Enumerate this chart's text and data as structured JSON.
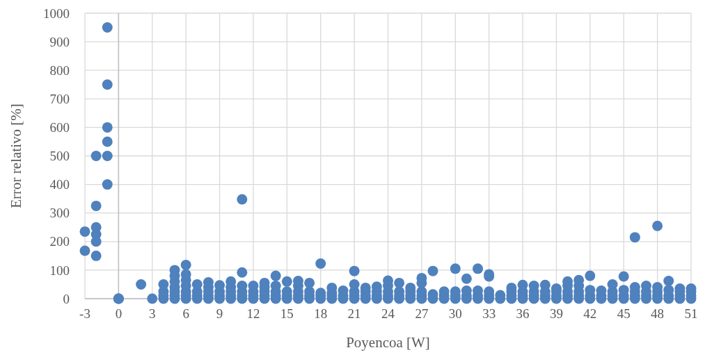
{
  "chart_data": {
    "type": "scatter",
    "xlabel": "Poyencoa [W]",
    "ylabel": "Error relativo [%]",
    "xlim": [
      -3,
      51
    ],
    "xticks": [
      -3,
      0,
      3,
      6,
      9,
      12,
      15,
      18,
      21,
      24,
      27,
      30,
      33,
      36,
      39,
      42,
      45,
      48,
      51
    ],
    "ylim": [
      0,
      1000
    ],
    "yticks": [
      0,
      100,
      200,
      300,
      400,
      500,
      600,
      700,
      800,
      900,
      1000
    ],
    "grid": true,
    "marker": "circle",
    "series": [
      {
        "color": "#4f81bd",
        "x": [
          -3,
          -3,
          -2,
          -2,
          -2,
          -2,
          -2,
          -2,
          -1,
          -1,
          -1,
          -1,
          -1,
          -1,
          0,
          0,
          0,
          2,
          3,
          4,
          4,
          4,
          4,
          5,
          5,
          5,
          5,
          5,
          5,
          5,
          6,
          6,
          6,
          6,
          6,
          6,
          6,
          7,
          7,
          7,
          7,
          8,
          8,
          8,
          8,
          8,
          9,
          9,
          9,
          9,
          10,
          10,
          10,
          10,
          10,
          11,
          11,
          11,
          11,
          11,
          11,
          12,
          12,
          12,
          12,
          13,
          13,
          13,
          13,
          13,
          14,
          14,
          14,
          14,
          14,
          15,
          15,
          15,
          15,
          16,
          16,
          16,
          16,
          16,
          17,
          17,
          17,
          17,
          18,
          18,
          18,
          18,
          19,
          19,
          19,
          19,
          20,
          20,
          20,
          21,
          21,
          21,
          21,
          21,
          22,
          22,
          22,
          22,
          23,
          23,
          23,
          23,
          24,
          24,
          24,
          24,
          24,
          25,
          25,
          25,
          25,
          26,
          26,
          26,
          26,
          27,
          27,
          27,
          27,
          27,
          28,
          28,
          28,
          29,
          29,
          29,
          30,
          30,
          30,
          30,
          31,
          31,
          31,
          31,
          32,
          32,
          32,
          32,
          33,
          33,
          33,
          33,
          33,
          34,
          34,
          35,
          35,
          35,
          35,
          36,
          36,
          36,
          36,
          37,
          37,
          37,
          37,
          38,
          38,
          38,
          38,
          39,
          39,
          39,
          39,
          40,
          40,
          40,
          40,
          40,
          41,
          41,
          41,
          41,
          41,
          42,
          42,
          42,
          42,
          43,
          43,
          43,
          44,
          44,
          44,
          44,
          45,
          45,
          45,
          45,
          46,
          46,
          46,
          46,
          46,
          47,
          47,
          47,
          47,
          48,
          48,
          48,
          48,
          48,
          49,
          49,
          49,
          49,
          50,
          50,
          50,
          50,
          51,
          51,
          51,
          51
        ],
        "values": [
          235,
          168,
          500,
          325,
          250,
          225,
          200,
          150,
          950,
          750,
          600,
          550,
          500,
          400,
          0,
          0,
          0,
          50,
          0,
          0,
          10,
          25,
          50,
          0,
          10,
          25,
          40,
          60,
          80,
          100,
          0,
          10,
          25,
          45,
          65,
          85,
          118,
          0,
          10,
          25,
          50,
          0,
          10,
          25,
          40,
          57,
          0,
          10,
          25,
          47,
          0,
          10,
          25,
          40,
          60,
          0,
          10,
          25,
          45,
          92,
          348,
          0,
          10,
          25,
          45,
          0,
          10,
          25,
          40,
          55,
          0,
          10,
          25,
          45,
          80,
          0,
          10,
          25,
          60,
          0,
          10,
          25,
          45,
          62,
          0,
          10,
          25,
          55,
          0,
          10,
          20,
          123,
          0,
          10,
          20,
          38,
          0,
          10,
          28,
          0,
          10,
          25,
          50,
          97,
          0,
          10,
          25,
          38,
          0,
          10,
          25,
          42,
          0,
          10,
          25,
          45,
          63,
          0,
          10,
          25,
          55,
          0,
          10,
          25,
          38,
          0,
          10,
          25,
          55,
          72,
          0,
          15,
          97,
          0,
          10,
          25,
          0,
          10,
          25,
          105,
          0,
          10,
          28,
          70,
          0,
          10,
          28,
          105,
          0,
          10,
          25,
          78,
          85,
          0,
          12,
          0,
          10,
          25,
          38,
          0,
          10,
          25,
          48,
          0,
          10,
          25,
          45,
          0,
          10,
          25,
          48,
          0,
          10,
          25,
          35,
          0,
          10,
          25,
          45,
          60,
          0,
          10,
          25,
          45,
          65,
          0,
          10,
          30,
          80,
          0,
          10,
          28,
          0,
          10,
          25,
          50,
          0,
          10,
          30,
          78,
          0,
          10,
          25,
          40,
          215,
          0,
          10,
          25,
          45,
          0,
          10,
          25,
          40,
          255,
          0,
          10,
          30,
          62,
          0,
          10,
          25,
          35,
          0,
          10,
          25,
          35
        ]
      }
    ]
  }
}
